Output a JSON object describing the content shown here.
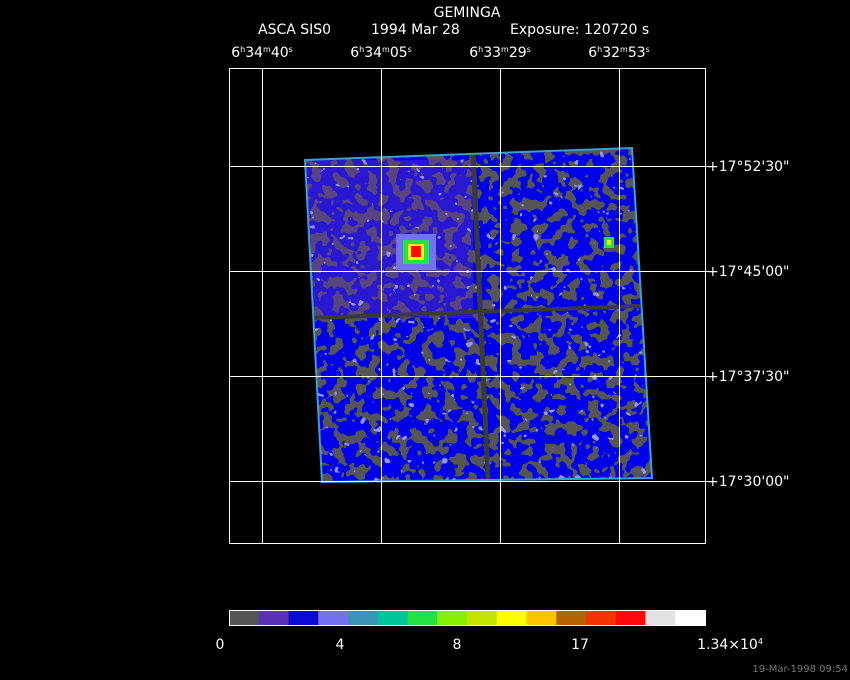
{
  "header": {
    "title": "GEMINGA",
    "instrument": "ASCA SIS0",
    "date": "1994 Mar 28",
    "exposure": "Exposure: 120720 s"
  },
  "ra_labels": [
    [
      "6",
      "h",
      "34",
      "m",
      "40",
      "s"
    ],
    [
      "6",
      "h",
      "34",
      "m",
      "05",
      "s"
    ],
    [
      "6",
      "h",
      "33",
      "m",
      "29",
      "s"
    ],
    [
      "6",
      "h",
      "32",
      "m",
      "53",
      "s"
    ]
  ],
  "dec_labels": [
    "+17°52'30\"",
    "+17°45'00\"",
    "+17°37'30\"",
    "+17°30'00\""
  ],
  "colorbar": {
    "colors": [
      "#555555",
      "#5a32b4",
      "#0a0ad2",
      "#7272f2",
      "#3a94b8",
      "#00c49a",
      "#22e244",
      "#84f000",
      "#c4e400",
      "#ffff00",
      "#ffc400",
      "#b46400",
      "#f23400",
      "#ff0a0a",
      "#e2e2e2",
      "#ffffff"
    ],
    "labels": [
      [
        "0"
      ],
      [
        "4"
      ],
      [
        "8"
      ],
      [
        "17"
      ],
      [
        "1.34×10",
        "4"
      ]
    ]
  },
  "timestamp": "19-Mar-1998 09:54"
}
